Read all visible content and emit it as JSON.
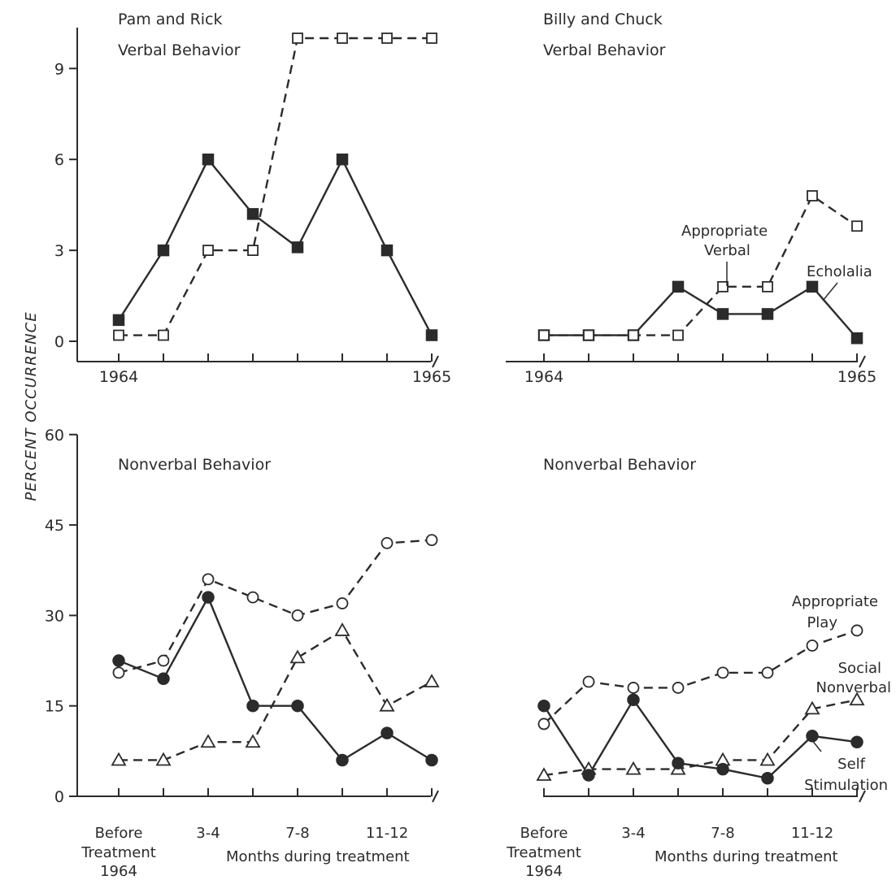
{
  "y_axis_label": "PERCENT OCCURRENCE",
  "panel_titles": {
    "top_left": [
      "Pam and Rick",
      "Verbal Behavior"
    ],
    "top_right": [
      "Billy and Chuck",
      "Verbal Behavior"
    ],
    "bottom_left": [
      "Nonverbal Behavior"
    ],
    "bottom_right": [
      "Nonverbal Behavior"
    ]
  },
  "year_labels": {
    "start": "1964",
    "end": "1965"
  },
  "bottom_x_labels": {
    "before": [
      "Before",
      "Treatment",
      "1964"
    ],
    "months": [
      "3-4",
      "7-8",
      "11-12"
    ],
    "caption": "Months during treatment"
  },
  "annotations": {
    "appropriate_verbal": [
      "Appropriate",
      "Verbal"
    ],
    "echolalia": [
      "Echolalia"
    ],
    "appropriate_play": [
      "Appropriate",
      "Play"
    ],
    "social_nonverbal": [
      "Social",
      "Nonverbal"
    ],
    "self_stimulation": [
      "Self",
      "Stimulation"
    ]
  },
  "chart_data": [
    {
      "type": "line",
      "title": "Pam and Rick — Verbal Behavior",
      "ylabel": "PERCENT OCCURRENCE",
      "xlabel": "",
      "ylim": [
        0,
        10
      ],
      "yticks": [
        0,
        3,
        6,
        9
      ],
      "x": [
        0,
        1,
        2,
        3,
        4,
        5,
        6,
        7
      ],
      "xtick_labels": [
        "1964",
        "",
        "",
        "",
        "",
        "",
        "",
        "1965"
      ],
      "grid": false,
      "series": [
        {
          "name": "",
          "marker": "filled-square",
          "line": "solid",
          "values": [
            0.7,
            3.0,
            6.0,
            4.2,
            3.1,
            6.0,
            3.0,
            0.2
          ]
        },
        {
          "name": "",
          "marker": "open-square",
          "line": "dashed",
          "values": [
            0.2,
            0.2,
            3.0,
            3.0,
            10.0,
            10.0,
            10.0,
            10.0
          ]
        }
      ]
    },
    {
      "type": "line",
      "title": "Billy and Chuck — Verbal Behavior",
      "ylabel": "PERCENT OCCURRENCE",
      "xlabel": "",
      "ylim": [
        0,
        10
      ],
      "yticks": [
        0,
        3,
        6,
        9
      ],
      "x": [
        0,
        1,
        2,
        3,
        4,
        5,
        6,
        7
      ],
      "xtick_labels": [
        "1964",
        "",
        "",
        "",
        "",
        "",
        "",
        "1965"
      ],
      "grid": false,
      "series": [
        {
          "name": "Echolalia",
          "marker": "filled-square",
          "line": "solid",
          "values": [
            0.2,
            0.2,
            0.2,
            1.8,
            0.9,
            0.9,
            1.8,
            0.1
          ]
        },
        {
          "name": "Appropriate Verbal",
          "marker": "open-square",
          "line": "dashed",
          "values": [
            0.2,
            0.2,
            0.2,
            0.2,
            1.8,
            1.8,
            4.8,
            3.8
          ]
        }
      ]
    },
    {
      "type": "line",
      "title": "Nonverbal Behavior",
      "ylabel": "PERCENT OCCURRENCE",
      "xlabel": "Months during treatment",
      "ylim": [
        0,
        60
      ],
      "yticks": [
        0,
        15,
        30,
        45,
        60
      ],
      "x": [
        0,
        1,
        2,
        3,
        4,
        5,
        6,
        7
      ],
      "xtick_labels": [
        "Before Treatment 1964",
        "",
        "3-4",
        "",
        "7-8",
        "",
        "11-12",
        ""
      ],
      "grid": false,
      "series": [
        {
          "name": "",
          "marker": "open-circle",
          "line": "dashed",
          "values": [
            20.5,
            22.5,
            36.0,
            33.0,
            30.0,
            32.0,
            42.0,
            42.5
          ]
        },
        {
          "name": "",
          "marker": "filled-circle",
          "line": "solid",
          "values": [
            22.5,
            19.5,
            33.0,
            15.0,
            15.0,
            6.0,
            10.5,
            6.0
          ]
        },
        {
          "name": "",
          "marker": "open-triangle",
          "line": "dashed",
          "values": [
            6.0,
            6.0,
            9.0,
            9.0,
            23.0,
            27.5,
            15.0,
            19.0
          ]
        }
      ]
    },
    {
      "type": "line",
      "title": "Nonverbal Behavior",
      "ylabel": "PERCENT OCCURRENCE",
      "xlabel": "Months during treatment",
      "ylim": [
        0,
        60
      ],
      "yticks": [
        0,
        15,
        30,
        45,
        60
      ],
      "x": [
        0,
        1,
        2,
        3,
        4,
        5,
        6,
        7
      ],
      "xtick_labels": [
        "Before Treatment 1964",
        "",
        "3-4",
        "",
        "7-8",
        "",
        "11-12",
        ""
      ],
      "grid": false,
      "series": [
        {
          "name": "Appropriate Play",
          "marker": "open-circle",
          "line": "dashed",
          "values": [
            12.0,
            19.0,
            18.0,
            18.0,
            20.5,
            20.5,
            25.0,
            27.5
          ]
        },
        {
          "name": "Social Nonverbal",
          "marker": "open-triangle",
          "line": "dashed",
          "values": [
            3.5,
            4.5,
            4.5,
            4.5,
            6.0,
            6.0,
            14.5,
            16.0
          ]
        },
        {
          "name": "Self Stimulation",
          "marker": "filled-circle",
          "line": "solid",
          "values": [
            15.0,
            3.5,
            16.0,
            5.5,
            4.5,
            3.0,
            10.0,
            9.0
          ]
        }
      ]
    }
  ]
}
